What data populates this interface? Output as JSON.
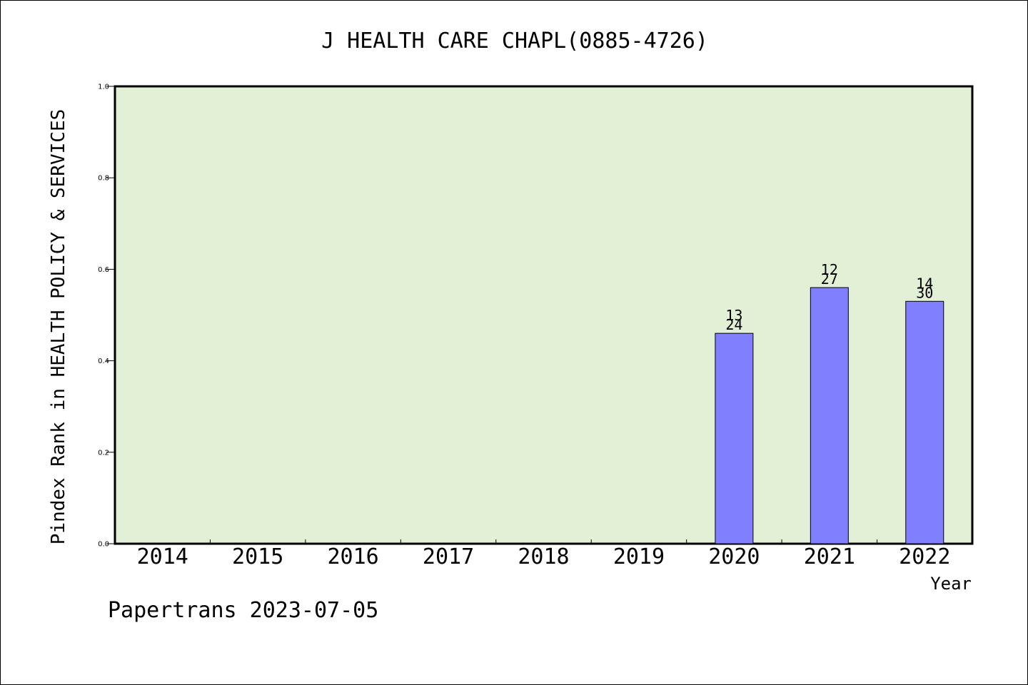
{
  "chart_data": {
    "type": "bar",
    "title": "J HEALTH CARE CHAPL(0885-4726)",
    "xlabel": "Year",
    "ylabel": "Pindex Rank in HEALTH POLICY & SERVICES",
    "categories": [
      "2014",
      "2015",
      "2016",
      "2017",
      "2018",
      "2019",
      "2020",
      "2021",
      "2022"
    ],
    "values": [
      null,
      null,
      null,
      null,
      null,
      null,
      0.46,
      0.56,
      0.53
    ],
    "bar_labels_top": [
      "",
      "",
      "",
      "",
      "",
      "",
      "13",
      "12",
      "14"
    ],
    "bar_labels_bottom": [
      "",
      "",
      "",
      "",
      "",
      "",
      "24",
      "27",
      "30"
    ],
    "ylim": [
      0,
      1.0
    ],
    "yticks": [
      "0.0",
      "0.2",
      "0.4",
      "0.6",
      "0.8",
      "1.0"
    ],
    "grid": false,
    "colors": {
      "plot_background": "#e2f0d6",
      "bar_fill": "#8080ff",
      "bar_stroke": "#000000"
    }
  },
  "footer": {
    "watermark": "Papertrans 2023-07-05"
  }
}
